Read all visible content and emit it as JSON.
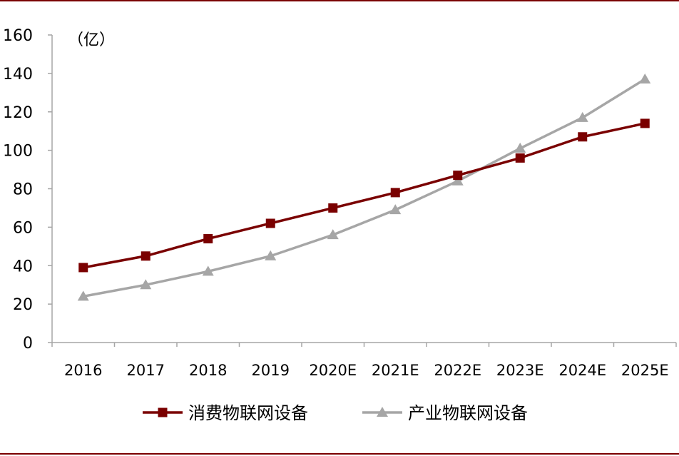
{
  "chart_data": {
    "type": "line",
    "categories": [
      "2016",
      "2017",
      "2018",
      "2019",
      "2020E",
      "2021E",
      "2022E",
      "2023E",
      "2024E",
      "2025E"
    ],
    "series": [
      {
        "name": "消费物联网设备",
        "values": [
          39,
          45,
          54,
          62,
          70,
          78,
          87,
          96,
          107,
          114
        ],
        "color": "#7a0000",
        "marker": "square"
      },
      {
        "name": "产业物联网设备",
        "values": [
          24,
          30,
          37,
          45,
          56,
          69,
          84,
          101,
          117,
          137
        ],
        "color": "#a6a6a6",
        "marker": "triangle"
      }
    ],
    "unit_label": "（亿）",
    "ylim": [
      0,
      160
    ],
    "yticks": [
      0,
      20,
      40,
      60,
      80,
      100,
      120,
      140,
      160
    ],
    "grid": false,
    "legend_position": "bottom"
  },
  "colors": {
    "frame": "#7a0000",
    "axis": "#a6a6a6"
  }
}
